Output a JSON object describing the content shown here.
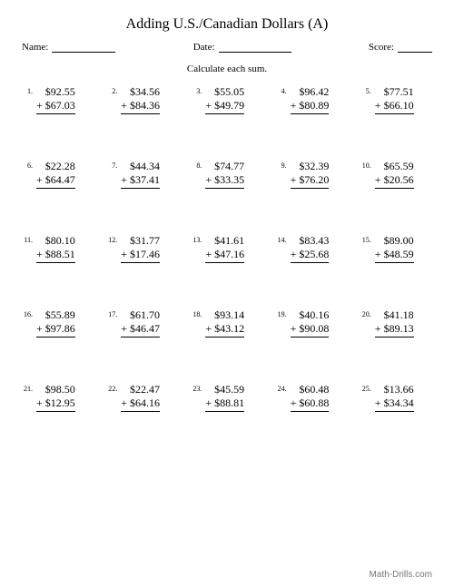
{
  "title": "Adding U.S./Canadian Dollars (A)",
  "labels": {
    "name": "Name:",
    "date": "Date:",
    "score": "Score:"
  },
  "instruction": "Calculate each sum.",
  "footer": "Math-Drills.com",
  "problems": [
    {
      "n": "1.",
      "a": "$92.55",
      "b": "$67.03"
    },
    {
      "n": "2.",
      "a": "$34.56",
      "b": "$84.36"
    },
    {
      "n": "3.",
      "a": "$55.05",
      "b": "$49.79"
    },
    {
      "n": "4.",
      "a": "$96.42",
      "b": "$80.89"
    },
    {
      "n": "5.",
      "a": "$77.51",
      "b": "$66.10"
    },
    {
      "n": "6.",
      "a": "$22.28",
      "b": "$64.47"
    },
    {
      "n": "7.",
      "a": "$44.34",
      "b": "$37.41"
    },
    {
      "n": "8.",
      "a": "$74.77",
      "b": "$33.35"
    },
    {
      "n": "9.",
      "a": "$32.39",
      "b": "$76.20"
    },
    {
      "n": "10.",
      "a": "$65.59",
      "b": "$20.56"
    },
    {
      "n": "11.",
      "a": "$80.10",
      "b": "$88.51"
    },
    {
      "n": "12.",
      "a": "$31.77",
      "b": "$17.46"
    },
    {
      "n": "13.",
      "a": "$41.61",
      "b": "$47.16"
    },
    {
      "n": "14.",
      "a": "$83.43",
      "b": "$25.68"
    },
    {
      "n": "15.",
      "a": "$89.00",
      "b": "$48.59"
    },
    {
      "n": "16.",
      "a": "$55.89",
      "b": "$97.86"
    },
    {
      "n": "17.",
      "a": "$61.70",
      "b": "$46.47"
    },
    {
      "n": "18.",
      "a": "$93.14",
      "b": "$43.12"
    },
    {
      "n": "19.",
      "a": "$40.16",
      "b": "$90.08"
    },
    {
      "n": "20.",
      "a": "$41.18",
      "b": "$89.13"
    },
    {
      "n": "21.",
      "a": "$98.50",
      "b": "$12.95"
    },
    {
      "n": "22.",
      "a": "$22.47",
      "b": "$64.16"
    },
    {
      "n": "23.",
      "a": "$45.59",
      "b": "$88.81"
    },
    {
      "n": "24.",
      "a": "$60.48",
      "b": "$60.88"
    },
    {
      "n": "25.",
      "a": "$13.66",
      "b": "$34.34"
    }
  ]
}
